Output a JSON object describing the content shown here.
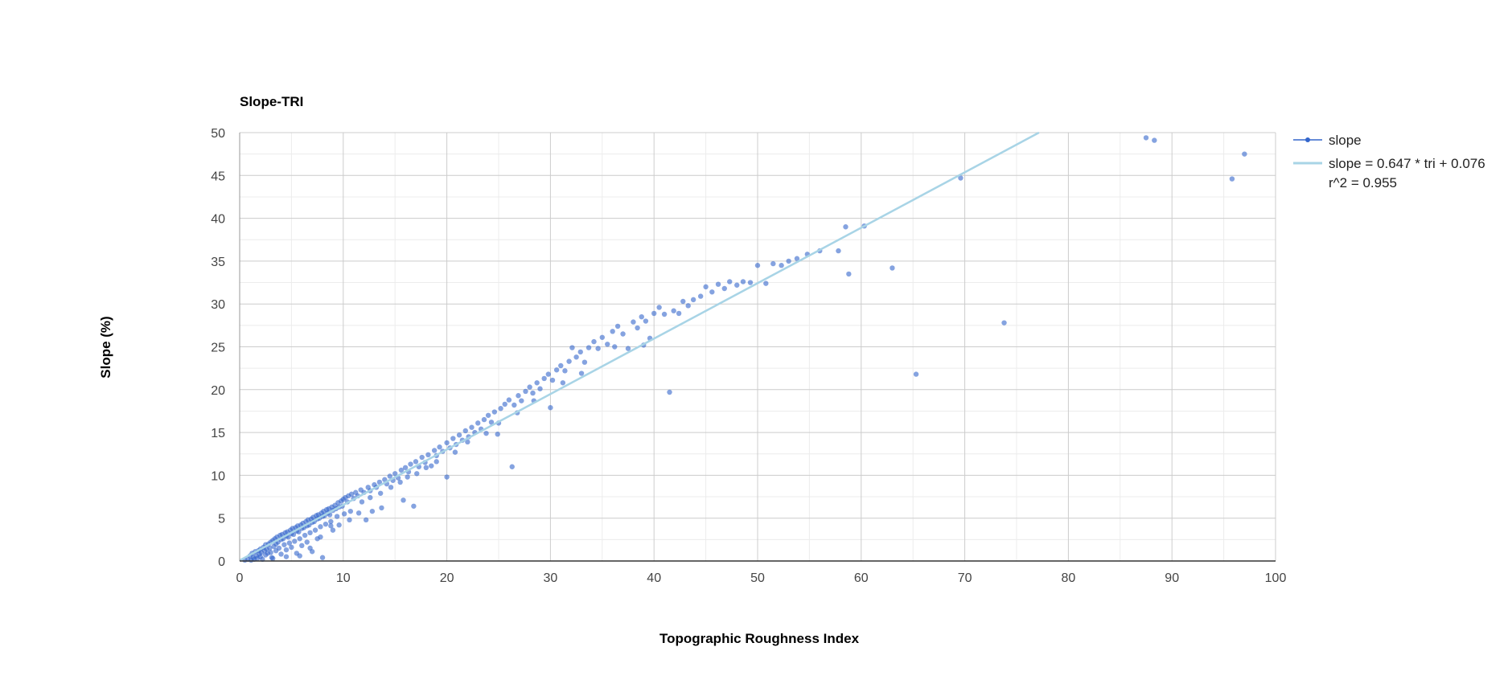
{
  "chart_data": {
    "type": "scatter",
    "title": "Slope-TRI",
    "xlabel": "Topographic Roughness Index",
    "ylabel": "Slope (%)",
    "xlim": [
      0,
      100
    ],
    "ylim": [
      0,
      50
    ],
    "x_ticks": [
      0,
      10,
      20,
      30,
      40,
      50,
      60,
      70,
      80,
      90,
      100
    ],
    "y_ticks": [
      0,
      5,
      10,
      15,
      20,
      25,
      30,
      35,
      40,
      45,
      50
    ],
    "grid": true,
    "legend_position": "right",
    "colors": {
      "points": "#3366cc",
      "trendline": "#a8d4e6"
    },
    "series": [
      {
        "name": "slope",
        "points": [
          [
            0.5,
            0.1
          ],
          [
            0.8,
            0.2
          ],
          [
            1.0,
            0.6
          ],
          [
            1.1,
            0.1
          ],
          [
            1.2,
            0.9
          ],
          [
            1.3,
            0.4
          ],
          [
            1.4,
            0.2
          ],
          [
            1.5,
            1.1
          ],
          [
            1.6,
            0.6
          ],
          [
            1.7,
            0.3
          ],
          [
            1.8,
            1.2
          ],
          [
            1.9,
            0.8
          ],
          [
            2.0,
            1.4
          ],
          [
            2.0,
            0.5
          ],
          [
            2.1,
            1.0
          ],
          [
            2.2,
            0.2
          ],
          [
            2.3,
            1.6
          ],
          [
            2.4,
            1.2
          ],
          [
            2.5,
            0.7
          ],
          [
            2.5,
            1.9
          ],
          [
            2.6,
            1.4
          ],
          [
            2.7,
            0.9
          ],
          [
            2.8,
            2.0
          ],
          [
            2.9,
            1.5
          ],
          [
            3.0,
            2.2
          ],
          [
            3.0,
            1.0
          ],
          [
            3.1,
            0.4
          ],
          [
            3.2,
            2.4
          ],
          [
            3.3,
            1.7
          ],
          [
            3.4,
            2.6
          ],
          [
            3.5,
            2.0
          ],
          [
            3.5,
            1.2
          ],
          [
            3.6,
            2.8
          ],
          [
            3.7,
            2.2
          ],
          [
            3.8,
            1.5
          ],
          [
            3.9,
            3.0
          ],
          [
            4.0,
            2.5
          ],
          [
            4.0,
            0.8
          ],
          [
            4.1,
            3.1
          ],
          [
            4.2,
            2.6
          ],
          [
            4.3,
            1.9
          ],
          [
            4.4,
            3.3
          ],
          [
            4.5,
            2.9
          ],
          [
            4.5,
            1.3
          ],
          [
            4.6,
            3.4
          ],
          [
            4.7,
            2.8
          ],
          [
            4.8,
            2.1
          ],
          [
            4.9,
            3.6
          ],
          [
            5.0,
            3.2
          ],
          [
            5.0,
            1.6
          ],
          [
            5.1,
            3.8
          ],
          [
            5.2,
            3.1
          ],
          [
            5.3,
            2.3
          ],
          [
            5.4,
            3.9
          ],
          [
            5.5,
            3.5
          ],
          [
            5.5,
            0.9
          ],
          [
            5.6,
            4.1
          ],
          [
            5.7,
            3.4
          ],
          [
            5.8,
            2.6
          ],
          [
            5.9,
            4.2
          ],
          [
            6.0,
            3.8
          ],
          [
            6.0,
            1.8
          ],
          [
            6.1,
            4.4
          ],
          [
            6.2,
            3.9
          ],
          [
            6.3,
            3.0
          ],
          [
            6.4,
            4.6
          ],
          [
            6.5,
            4.1
          ],
          [
            6.5,
            2.2
          ],
          [
            6.6,
            4.8
          ],
          [
            6.7,
            4.2
          ],
          [
            6.8,
            3.3
          ],
          [
            6.9,
            4.9
          ],
          [
            7.0,
            4.5
          ],
          [
            7.0,
            1.1
          ],
          [
            7.1,
            5.1
          ],
          [
            7.2,
            4.6
          ],
          [
            7.3,
            3.6
          ],
          [
            7.4,
            5.3
          ],
          [
            7.5,
            4.9
          ],
          [
            7.5,
            2.6
          ],
          [
            7.6,
            5.4
          ],
          [
            7.7,
            5.0
          ],
          [
            7.8,
            4.0
          ],
          [
            7.9,
            5.6
          ],
          [
            8.0,
            5.2
          ],
          [
            8.0,
            0.4
          ],
          [
            8.1,
            5.8
          ],
          [
            8.2,
            5.3
          ],
          [
            8.3,
            4.3
          ],
          [
            8.4,
            6.0
          ],
          [
            8.5,
            5.6
          ],
          [
            8.6,
            6.1
          ],
          [
            8.7,
            5.4
          ],
          [
            8.8,
            4.6
          ],
          [
            8.9,
            6.3
          ],
          [
            9.0,
            5.9
          ],
          [
            9.0,
            3.6
          ],
          [
            9.2,
            6.5
          ],
          [
            9.3,
            6.1
          ],
          [
            9.4,
            5.2
          ],
          [
            9.5,
            6.8
          ],
          [
            9.6,
            6.3
          ],
          [
            9.8,
            7.0
          ],
          [
            9.9,
            6.4
          ],
          [
            10.0,
            7.2
          ],
          [
            10.1,
            5.5
          ],
          [
            10.2,
            7.4
          ],
          [
            10.4,
            6.9
          ],
          [
            10.5,
            7.6
          ],
          [
            10.6,
            4.8
          ],
          [
            10.8,
            7.8
          ],
          [
            11.0,
            7.3
          ],
          [
            11.2,
            8.0
          ],
          [
            11.4,
            7.6
          ],
          [
            11.5,
            5.6
          ],
          [
            11.7,
            8.3
          ],
          [
            12.0,
            8.0
          ],
          [
            12.2,
            4.8
          ],
          [
            12.4,
            8.6
          ],
          [
            12.6,
            8.2
          ],
          [
            12.8,
            5.8
          ],
          [
            13.0,
            8.9
          ],
          [
            13.2,
            8.6
          ],
          [
            13.5,
            9.2
          ],
          [
            13.7,
            6.2
          ],
          [
            14.0,
            9.5
          ],
          [
            14.2,
            9.0
          ],
          [
            14.5,
            9.9
          ],
          [
            14.8,
            9.4
          ],
          [
            15.0,
            10.2
          ],
          [
            15.3,
            9.7
          ],
          [
            15.6,
            10.6
          ],
          [
            15.8,
            7.1
          ],
          [
            16.0,
            10.9
          ],
          [
            16.3,
            10.4
          ],
          [
            16.5,
            11.3
          ],
          [
            16.8,
            6.4
          ],
          [
            17.0,
            11.6
          ],
          [
            17.3,
            11.0
          ],
          [
            17.6,
            12.1
          ],
          [
            17.9,
            11.5
          ],
          [
            18.2,
            12.4
          ],
          [
            18.5,
            11.1
          ],
          [
            18.8,
            12.9
          ],
          [
            19.0,
            12.3
          ],
          [
            19.3,
            13.3
          ],
          [
            19.6,
            12.8
          ],
          [
            20.0,
            13.8
          ],
          [
            20.0,
            9.8
          ],
          [
            20.3,
            13.2
          ],
          [
            20.6,
            14.3
          ],
          [
            20.9,
            13.6
          ],
          [
            21.2,
            14.7
          ],
          [
            21.5,
            14.1
          ],
          [
            21.8,
            15.2
          ],
          [
            22.1,
            14.5
          ],
          [
            22.4,
            15.6
          ],
          [
            22.7,
            15.0
          ],
          [
            23.0,
            16.1
          ],
          [
            23.3,
            15.4
          ],
          [
            23.6,
            16.5
          ],
          [
            24.0,
            17.0
          ],
          [
            24.3,
            16.2
          ],
          [
            24.6,
            17.4
          ],
          [
            24.9,
            14.8
          ],
          [
            25.2,
            17.8
          ],
          [
            25.6,
            18.3
          ],
          [
            26.0,
            18.8
          ],
          [
            26.3,
            11.0
          ],
          [
            26.5,
            18.2
          ],
          [
            26.9,
            19.3
          ],
          [
            27.2,
            18.7
          ],
          [
            27.6,
            19.8
          ],
          [
            28.0,
            20.3
          ],
          [
            28.3,
            19.6
          ],
          [
            28.7,
            20.8
          ],
          [
            29.0,
            20.1
          ],
          [
            29.4,
            21.3
          ],
          [
            29.8,
            21.8
          ],
          [
            30.0,
            17.9
          ],
          [
            30.2,
            21.1
          ],
          [
            30.6,
            22.3
          ],
          [
            31.0,
            22.8
          ],
          [
            31.4,
            22.2
          ],
          [
            31.8,
            23.3
          ],
          [
            32.1,
            24.9
          ],
          [
            32.5,
            23.8
          ],
          [
            32.9,
            24.4
          ],
          [
            33.3,
            23.2
          ],
          [
            33.7,
            24.9
          ],
          [
            34.2,
            25.6
          ],
          [
            34.6,
            24.8
          ],
          [
            35.0,
            26.1
          ],
          [
            35.5,
            25.3
          ],
          [
            36.0,
            26.8
          ],
          [
            36.5,
            27.4
          ],
          [
            37.0,
            26.5
          ],
          [
            37.5,
            24.8
          ],
          [
            38.0,
            27.9
          ],
          [
            38.4,
            27.2
          ],
          [
            38.8,
            28.5
          ],
          [
            39.2,
            28.0
          ],
          [
            39.6,
            26.0
          ],
          [
            40.0,
            28.9
          ],
          [
            40.5,
            29.6
          ],
          [
            41.0,
            28.8
          ],
          [
            41.5,
            19.7
          ],
          [
            41.9,
            29.2
          ],
          [
            42.4,
            28.9
          ],
          [
            42.8,
            30.3
          ],
          [
            43.3,
            29.8
          ],
          [
            43.8,
            30.5
          ],
          [
            44.5,
            30.9
          ],
          [
            45.0,
            32.0
          ],
          [
            45.6,
            31.4
          ],
          [
            46.2,
            32.3
          ],
          [
            46.8,
            31.8
          ],
          [
            47.3,
            32.6
          ],
          [
            48.0,
            32.2
          ],
          [
            48.6,
            32.6
          ],
          [
            49.3,
            32.5
          ],
          [
            50.0,
            34.5
          ],
          [
            50.8,
            32.4
          ],
          [
            51.5,
            34.7
          ],
          [
            52.3,
            34.5
          ],
          [
            53.0,
            35.0
          ],
          [
            53.8,
            35.3
          ],
          [
            54.8,
            35.8
          ],
          [
            56.0,
            36.2
          ],
          [
            57.8,
            36.2
          ],
          [
            58.5,
            39.0
          ],
          [
            58.8,
            33.5
          ],
          [
            60.3,
            39.1
          ],
          [
            63.0,
            34.2
          ],
          [
            65.3,
            21.8
          ],
          [
            69.6,
            44.7
          ],
          [
            73.8,
            27.8
          ],
          [
            87.5,
            49.4
          ],
          [
            88.3,
            49.1
          ],
          [
            95.8,
            44.6
          ],
          [
            97.0,
            47.5
          ],
          [
            3.2,
            0.3
          ],
          [
            4.5,
            0.5
          ],
          [
            5.8,
            0.6
          ],
          [
            6.8,
            1.5
          ],
          [
            7.8,
            2.8
          ],
          [
            8.8,
            4.1
          ],
          [
            9.6,
            4.2
          ],
          [
            10.7,
            5.8
          ],
          [
            11.8,
            6.9
          ],
          [
            12.6,
            7.4
          ],
          [
            13.6,
            7.9
          ],
          [
            14.6,
            8.6
          ],
          [
            15.5,
            9.2
          ],
          [
            16.2,
            9.8
          ],
          [
            17.1,
            10.2
          ],
          [
            18.0,
            10.9
          ],
          [
            19.0,
            11.6
          ],
          [
            20.8,
            12.7
          ],
          [
            22.0,
            13.9
          ],
          [
            23.8,
            14.9
          ],
          [
            25.0,
            16.1
          ],
          [
            26.8,
            17.3
          ],
          [
            28.4,
            18.7
          ],
          [
            31.2,
            20.8
          ],
          [
            33.0,
            21.9
          ],
          [
            36.2,
            25.0
          ],
          [
            39.0,
            25.2
          ]
        ]
      },
      {
        "name": "slope = 0.647 * tri + 0.076",
        "name_line2": "r^2 = 0.955",
        "type": "trendline",
        "slope": 0.647,
        "intercept": 0.076
      }
    ]
  }
}
